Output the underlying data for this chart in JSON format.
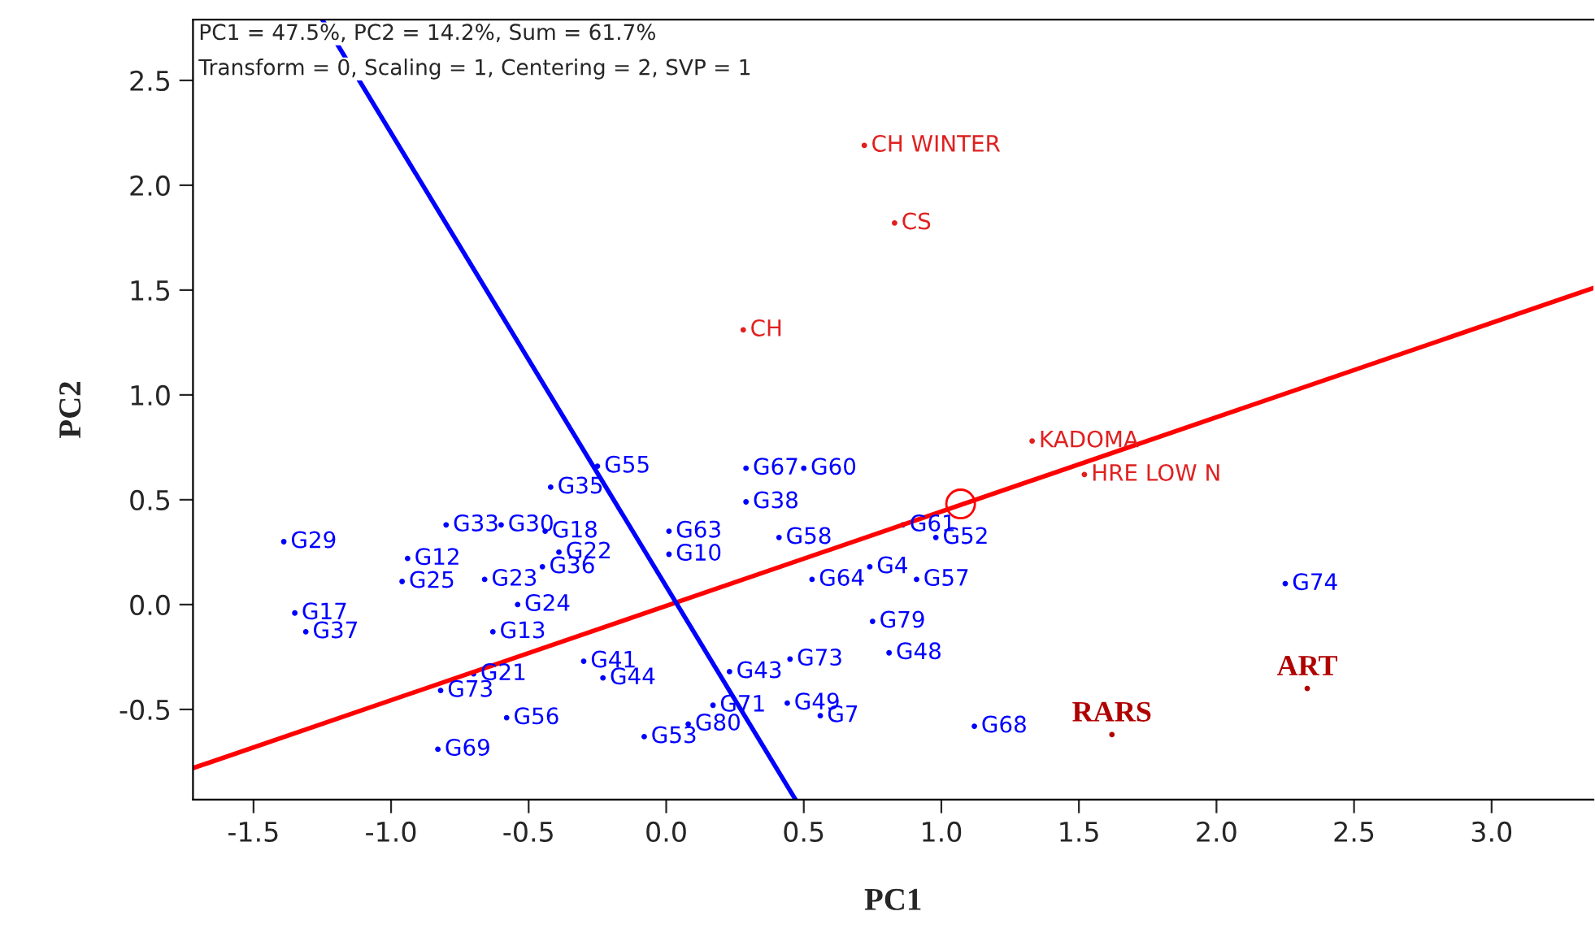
{
  "chart_data": {
    "type": "scatter",
    "xlabel": "PC1",
    "ylabel": "PC2",
    "annotations": [
      "PC1 = 47.5%, PC2 = 14.2%, Sum = 61.7%",
      "Transform = 0, Scaling = 1, Centering = 2, SVP = 1"
    ],
    "xlim": [
      -1.72,
      3.37
    ],
    "ylim": [
      -0.93,
      2.79
    ],
    "xticks": [
      -1.5,
      {
        "value": -1,
        "label": "-1.0"
      },
      -0.5,
      {
        "value": 0,
        "label": "0.0"
      },
      0.5,
      {
        "value": 1,
        "label": "1.0"
      },
      1.5,
      {
        "value": 2,
        "label": "2.0"
      },
      2.5,
      {
        "value": 3,
        "label": "3.0"
      }
    ],
    "yticks": [
      -0.5,
      {
        "value": 0,
        "label": "0.0"
      },
      0.5,
      {
        "value": 1,
        "label": "1.0"
      },
      1.5,
      {
        "value": 2,
        "label": "2.0"
      },
      2.5
    ],
    "grid": false,
    "marker": "none",
    "series": [
      {
        "type": "line",
        "color": "#ff0000",
        "x": [
          -1.72,
          3.37
        ],
        "values": [
          -0.78,
          1.51
        ]
      },
      {
        "type": "line",
        "color": "#0000ff",
        "x": [
          -1.25,
          0.47
        ],
        "values": [
          2.79,
          -0.93
        ]
      },
      {
        "marker": "circle",
        "color": "#ff0000",
        "x": [
          1.07
        ],
        "values": [
          0.48
        ]
      },
      {
        "marker": "circle",
        "color": "#0000ff",
        "x": [
          -1.39,
          -1.35,
          -1.31,
          -0.94,
          -0.96,
          -0.66,
          -0.7,
          -0.82,
          -0.58,
          -0.83,
          -0.8,
          -0.6,
          -0.54,
          -0.63,
          -0.44,
          -0.42,
          -0.25,
          0.29,
          0.5,
          0.29,
          0.01,
          0.86,
          0.98,
          0.91,
          0.74,
          0.81,
          1.12,
          2.25,
          0.75,
          0.23,
          0.45,
          0.44,
          0.56,
          0.17,
          0.08,
          -0.08,
          -0.23,
          -0.3,
          0.41,
          0.53,
          0.01,
          -0.45,
          -0.39
        ],
        "values": [
          0.3,
          -0.04,
          -0.13,
          0.22,
          0.11,
          0.12,
          -0.33,
          -0.41,
          -0.54,
          -0.69,
          0.38,
          0.38,
          0.0,
          -0.13,
          0.35,
          0.56,
          0.66,
          0.65,
          0.65,
          0.49,
          0.35,
          0.38,
          0.32,
          0.12,
          0.18,
          -0.23,
          -0.58,
          0.1,
          -0.08,
          -0.32,
          -0.26,
          -0.47,
          -0.53,
          -0.48,
          -0.57,
          -0.63,
          -0.35,
          -0.27,
          0.32,
          0.12,
          0.24,
          0.18,
          0.25
        ],
        "value_labels": [
          "G29",
          "G17",
          "G37",
          "G12",
          "G25",
          "G23",
          "G21",
          "G73",
          "G56",
          "G69",
          "G33",
          "G30",
          "G24",
          "G13",
          "G18",
          "G35",
          "G55",
          "G67",
          "G60",
          "G38",
          "G63",
          "G61",
          "G52",
          "G57",
          "G4",
          "G48",
          "G68",
          "G74",
          "G79",
          "G43",
          "G73",
          "G49",
          "G7",
          "G71",
          "G80",
          "G53",
          "G44",
          "G41",
          "G58",
          "G64",
          "G10",
          "G36",
          "G22"
        ]
      },
      {
        "marker": "circle",
        "color": "#e02020",
        "x": [
          0.72,
          0.83,
          0.28,
          1.33,
          1.52
        ],
        "values": [
          2.19,
          1.82,
          1.31,
          0.78,
          0.62
        ],
        "value_labels": [
          "CH WINTER",
          "CS",
          "CH",
          "KADOMA",
          "HRE LOW N"
        ]
      },
      {
        "marker": "circle",
        "color": "#b00000",
        "x": [
          2.33,
          1.62
        ],
        "values": [
          -0.4,
          -0.62
        ],
        "value_labels": [
          "ART",
          "RARS"
        ]
      }
    ]
  }
}
